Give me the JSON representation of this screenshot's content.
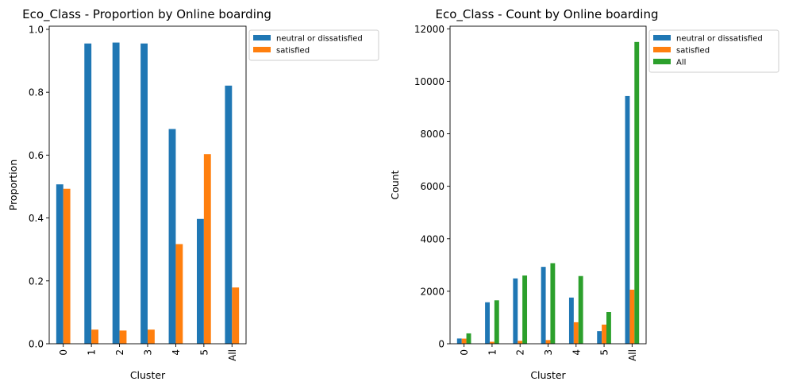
{
  "chart_data": [
    {
      "type": "bar",
      "title": "Eco_Class - Proportion by Online boarding",
      "xlabel": "Cluster",
      "ylabel": "Proportion",
      "categories": [
        "0",
        "1",
        "2",
        "3",
        "4",
        "5",
        "All"
      ],
      "ylim": [
        0,
        1.01
      ],
      "yticks": [
        0.0,
        0.2,
        0.4,
        0.6,
        0.8,
        1.0
      ],
      "ytick_labels": [
        "0.0",
        "0.2",
        "0.4",
        "0.6",
        "0.8",
        "1.0"
      ],
      "grid": false,
      "legend_position": "outside-top-right",
      "series": [
        {
          "name": "neutral or dissatisfied",
          "color": "#1f77b4",
          "values": [
            0.507,
            0.955,
            0.958,
            0.955,
            0.683,
            0.397,
            0.821
          ]
        },
        {
          "name": "satisfied",
          "color": "#ff7f0e",
          "values": [
            0.493,
            0.045,
            0.042,
            0.045,
            0.317,
            0.603,
            0.179
          ]
        }
      ]
    },
    {
      "type": "bar",
      "title": "Eco_Class - Count by Online boarding",
      "xlabel": "Cluster",
      "ylabel": "Count",
      "categories": [
        "0",
        "1",
        "2",
        "3",
        "4",
        "5",
        "All"
      ],
      "ylim": [
        0,
        12100
      ],
      "yticks": [
        0,
        2000,
        4000,
        6000,
        8000,
        10000,
        12000
      ],
      "ytick_labels": [
        "0",
        "2000",
        "4000",
        "6000",
        "8000",
        "10000",
        "12000"
      ],
      "grid": false,
      "legend_position": "outside-top-right",
      "series": [
        {
          "name": "neutral or dissatisfied",
          "color": "#1f77b4",
          "values": [
            200,
            1580,
            2490,
            2930,
            1760,
            480,
            9440
          ]
        },
        {
          "name": "satisfied",
          "color": "#ff7f0e",
          "values": [
            195,
            75,
            110,
            140,
            820,
            730,
            2060
          ]
        },
        {
          "name": "All",
          "color": "#2ca02c",
          "values": [
            395,
            1655,
            2600,
            3070,
            2580,
            1210,
            11500
          ]
        }
      ]
    }
  ]
}
